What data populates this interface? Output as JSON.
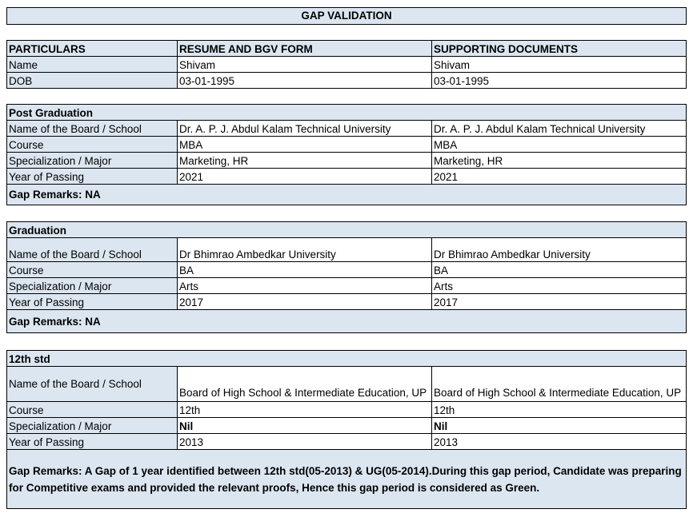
{
  "title": "GAP VALIDATION",
  "header": {
    "columns": [
      "PARTICULARS",
      "RESUME AND BGV FORM",
      "SUPPORTING DOCUMENTS"
    ],
    "rows": [
      {
        "label": "Name",
        "resume": "Shivam",
        "docs": "Shivam"
      },
      {
        "label": "DOB",
        "resume": "03-01-1995",
        "docs": "03-01-1995"
      }
    ]
  },
  "sections": [
    {
      "title": "Post Graduation",
      "rows": [
        {
          "label": "Name of the Board / School",
          "resume": "Dr. A. P. J. Abdul Kalam Technical University",
          "docs": "Dr. A. P. J. Abdul Kalam Technical University"
        },
        {
          "label": "Course",
          "resume": "MBA",
          "docs": "MBA"
        },
        {
          "label": "Specialization / Major",
          "resume": "Marketing, HR",
          "docs": "Marketing, HR"
        },
        {
          "label": "Year of Passing",
          "resume": "2021",
          "docs": "2021"
        }
      ],
      "remarks": "Gap Remarks: NA"
    },
    {
      "title": "Graduation",
      "rows": [
        {
          "label": "Name of the Board / School",
          "resume": "Dr Bhimrao Ambedkar University",
          "docs": "Dr Bhimrao Ambedkar University"
        },
        {
          "label": "Course",
          "resume": "BA",
          "docs": "BA"
        },
        {
          "label": "Specialization / Major",
          "resume": "Arts",
          "docs": "Arts"
        },
        {
          "label": "Year of Passing",
          "resume": "2017",
          "docs": "2017"
        }
      ],
      "remarks": "Gap Remarks: NA"
    },
    {
      "title": "12th std",
      "rows": [
        {
          "label": "Name of the Board / School",
          "resume": "Board of High School & Intermediate Education, UP",
          "docs": "Board of High School & Intermediate Education, UP"
        },
        {
          "label": "Course",
          "resume": "12th",
          "docs": "12th"
        },
        {
          "label": "Specialization / Major",
          "resume": "Nil",
          "docs": "Nil"
        },
        {
          "label": "Year of Passing",
          "resume": "2013",
          "docs": "2013"
        }
      ],
      "remarks": "Gap Remarks: A Gap of 1 year identified between 12th std(05-2013) & UG(05-2014).During this gap period, Candidate was preparing for Competitive exams and provided the relevant proofs, Hence this gap period is considered as Green."
    }
  ]
}
